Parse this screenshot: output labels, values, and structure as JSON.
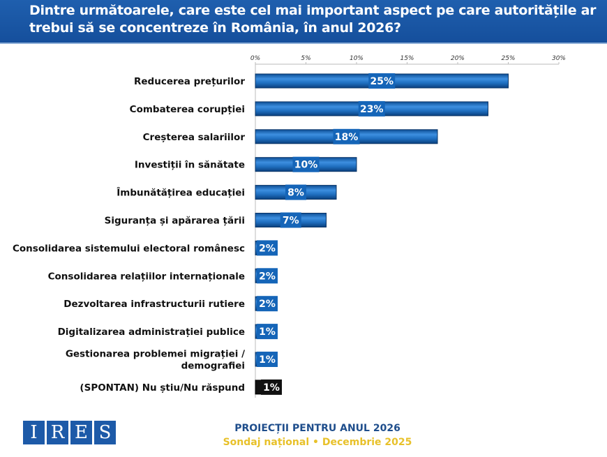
{
  "header": {
    "title": "Dintre următoarele, care este cel mai important aspect pe care autoritățile ar trebui să se concentreze în România, în anul 2026?"
  },
  "chart_data": {
    "type": "bar",
    "orientation": "horizontal",
    "categories": [
      "Reducerea prețurilor",
      "Combaterea corupției",
      "Creșterea salariilor",
      "Investiții în sănătate",
      "Îmbunătățirea educației",
      "Siguranța și apărarea țării",
      "Consolidarea sistemului electoral românesc",
      "Consolidarea relațiilor internaționale",
      "Dezvoltarea infrastructurii rutiere",
      "Digitalizarea administrației publice",
      "Gestionarea problemei migrației / demografiei",
      "(SPONTAN) Nu știu/Nu răspund"
    ],
    "values": [
      25,
      23,
      18,
      10,
      8,
      7,
      2,
      2,
      2,
      1,
      1,
      1
    ],
    "value_labels": [
      "25%",
      "23%",
      "18%",
      "10%",
      "8%",
      "7%",
      "2%",
      "2%",
      "2%",
      "1%",
      "1%",
      "1%"
    ],
    "xlim": [
      0,
      30
    ],
    "ticks": [
      "0%",
      "5%",
      "10%",
      "15%",
      "20%",
      "25%",
      "30%"
    ],
    "tick_values": [
      0,
      5,
      10,
      15,
      20,
      25,
      30
    ],
    "axis_position": "top",
    "grid": false,
    "colors": {
      "bar": "#1f6fc0",
      "label_box": "#1565b8",
      "spontan": "#111111"
    }
  },
  "footer": {
    "logo": "IRES",
    "line1": "PROIECȚII PENTRU ANUL 2026",
    "line2": "Sondaj național • Decembrie 2025"
  }
}
